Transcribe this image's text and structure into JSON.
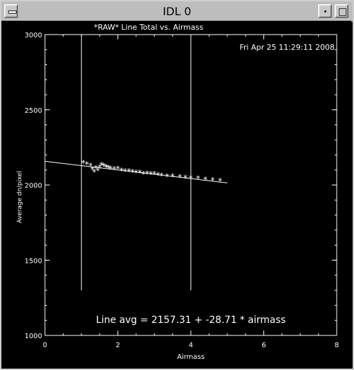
{
  "window": {
    "title": "IDL 0",
    "icons": [
      "window-menu-icon",
      "minimize-icon",
      "maximize-icon"
    ]
  },
  "chart_data": {
    "type": "scatter",
    "title": "*RAW* Line Total vs. Airmass",
    "timestamp": "Fri Apr 25 11:29:11 2008",
    "xlabel": "Airmass",
    "ylabel": "Average dn/pixel",
    "xlim": [
      0,
      8
    ],
    "ylim": [
      1000,
      3000
    ],
    "xticks": [
      "0",
      "2",
      "4",
      "6",
      "8"
    ],
    "yticks": [
      "1000",
      "1500",
      "2000",
      "2500",
      "3000"
    ],
    "grid": false,
    "background": "#000000",
    "foreground": "#ffffff",
    "annotation": "Line avg =  2157.31 + -28.71 * airmass",
    "vertical_lines": [
      {
        "x": 1.0,
        "y_range": [
          1300,
          3000
        ]
      },
      {
        "x": 4.0,
        "y_range": [
          1300,
          3000
        ]
      }
    ],
    "fit_line": {
      "intercept": 2157.31,
      "slope": -28.71,
      "x_range": [
        0,
        5.0
      ]
    },
    "points": [
      [
        1.05,
        2150
      ],
      [
        1.15,
        2140
      ],
      [
        1.25,
        2130
      ],
      [
        1.3,
        2105
      ],
      [
        1.35,
        2090
      ],
      [
        1.4,
        2115
      ],
      [
        1.45,
        2100
      ],
      [
        1.5,
        2120
      ],
      [
        1.55,
        2135
      ],
      [
        1.6,
        2130
      ],
      [
        1.65,
        2125
      ],
      [
        1.7,
        2120
      ],
      [
        1.75,
        2115
      ],
      [
        1.8,
        2110
      ],
      [
        1.9,
        2108
      ],
      [
        2.0,
        2110
      ],
      [
        2.1,
        2100
      ],
      [
        2.2,
        2095
      ],
      [
        2.3,
        2095
      ],
      [
        2.4,
        2090
      ],
      [
        2.5,
        2085
      ],
      [
        2.6,
        2085
      ],
      [
        2.7,
        2075
      ],
      [
        2.8,
        2078
      ],
      [
        2.9,
        2075
      ],
      [
        3.0,
        2075
      ],
      [
        3.1,
        2070
      ],
      [
        3.2,
        2065
      ],
      [
        3.35,
        2060
      ],
      [
        3.5,
        2060
      ],
      [
        3.7,
        2055
      ],
      [
        3.85,
        2050
      ],
      [
        4.0,
        2048
      ],
      [
        4.2,
        2045
      ],
      [
        4.4,
        2040
      ],
      [
        4.6,
        2035
      ],
      [
        4.8,
        2030
      ]
    ]
  }
}
